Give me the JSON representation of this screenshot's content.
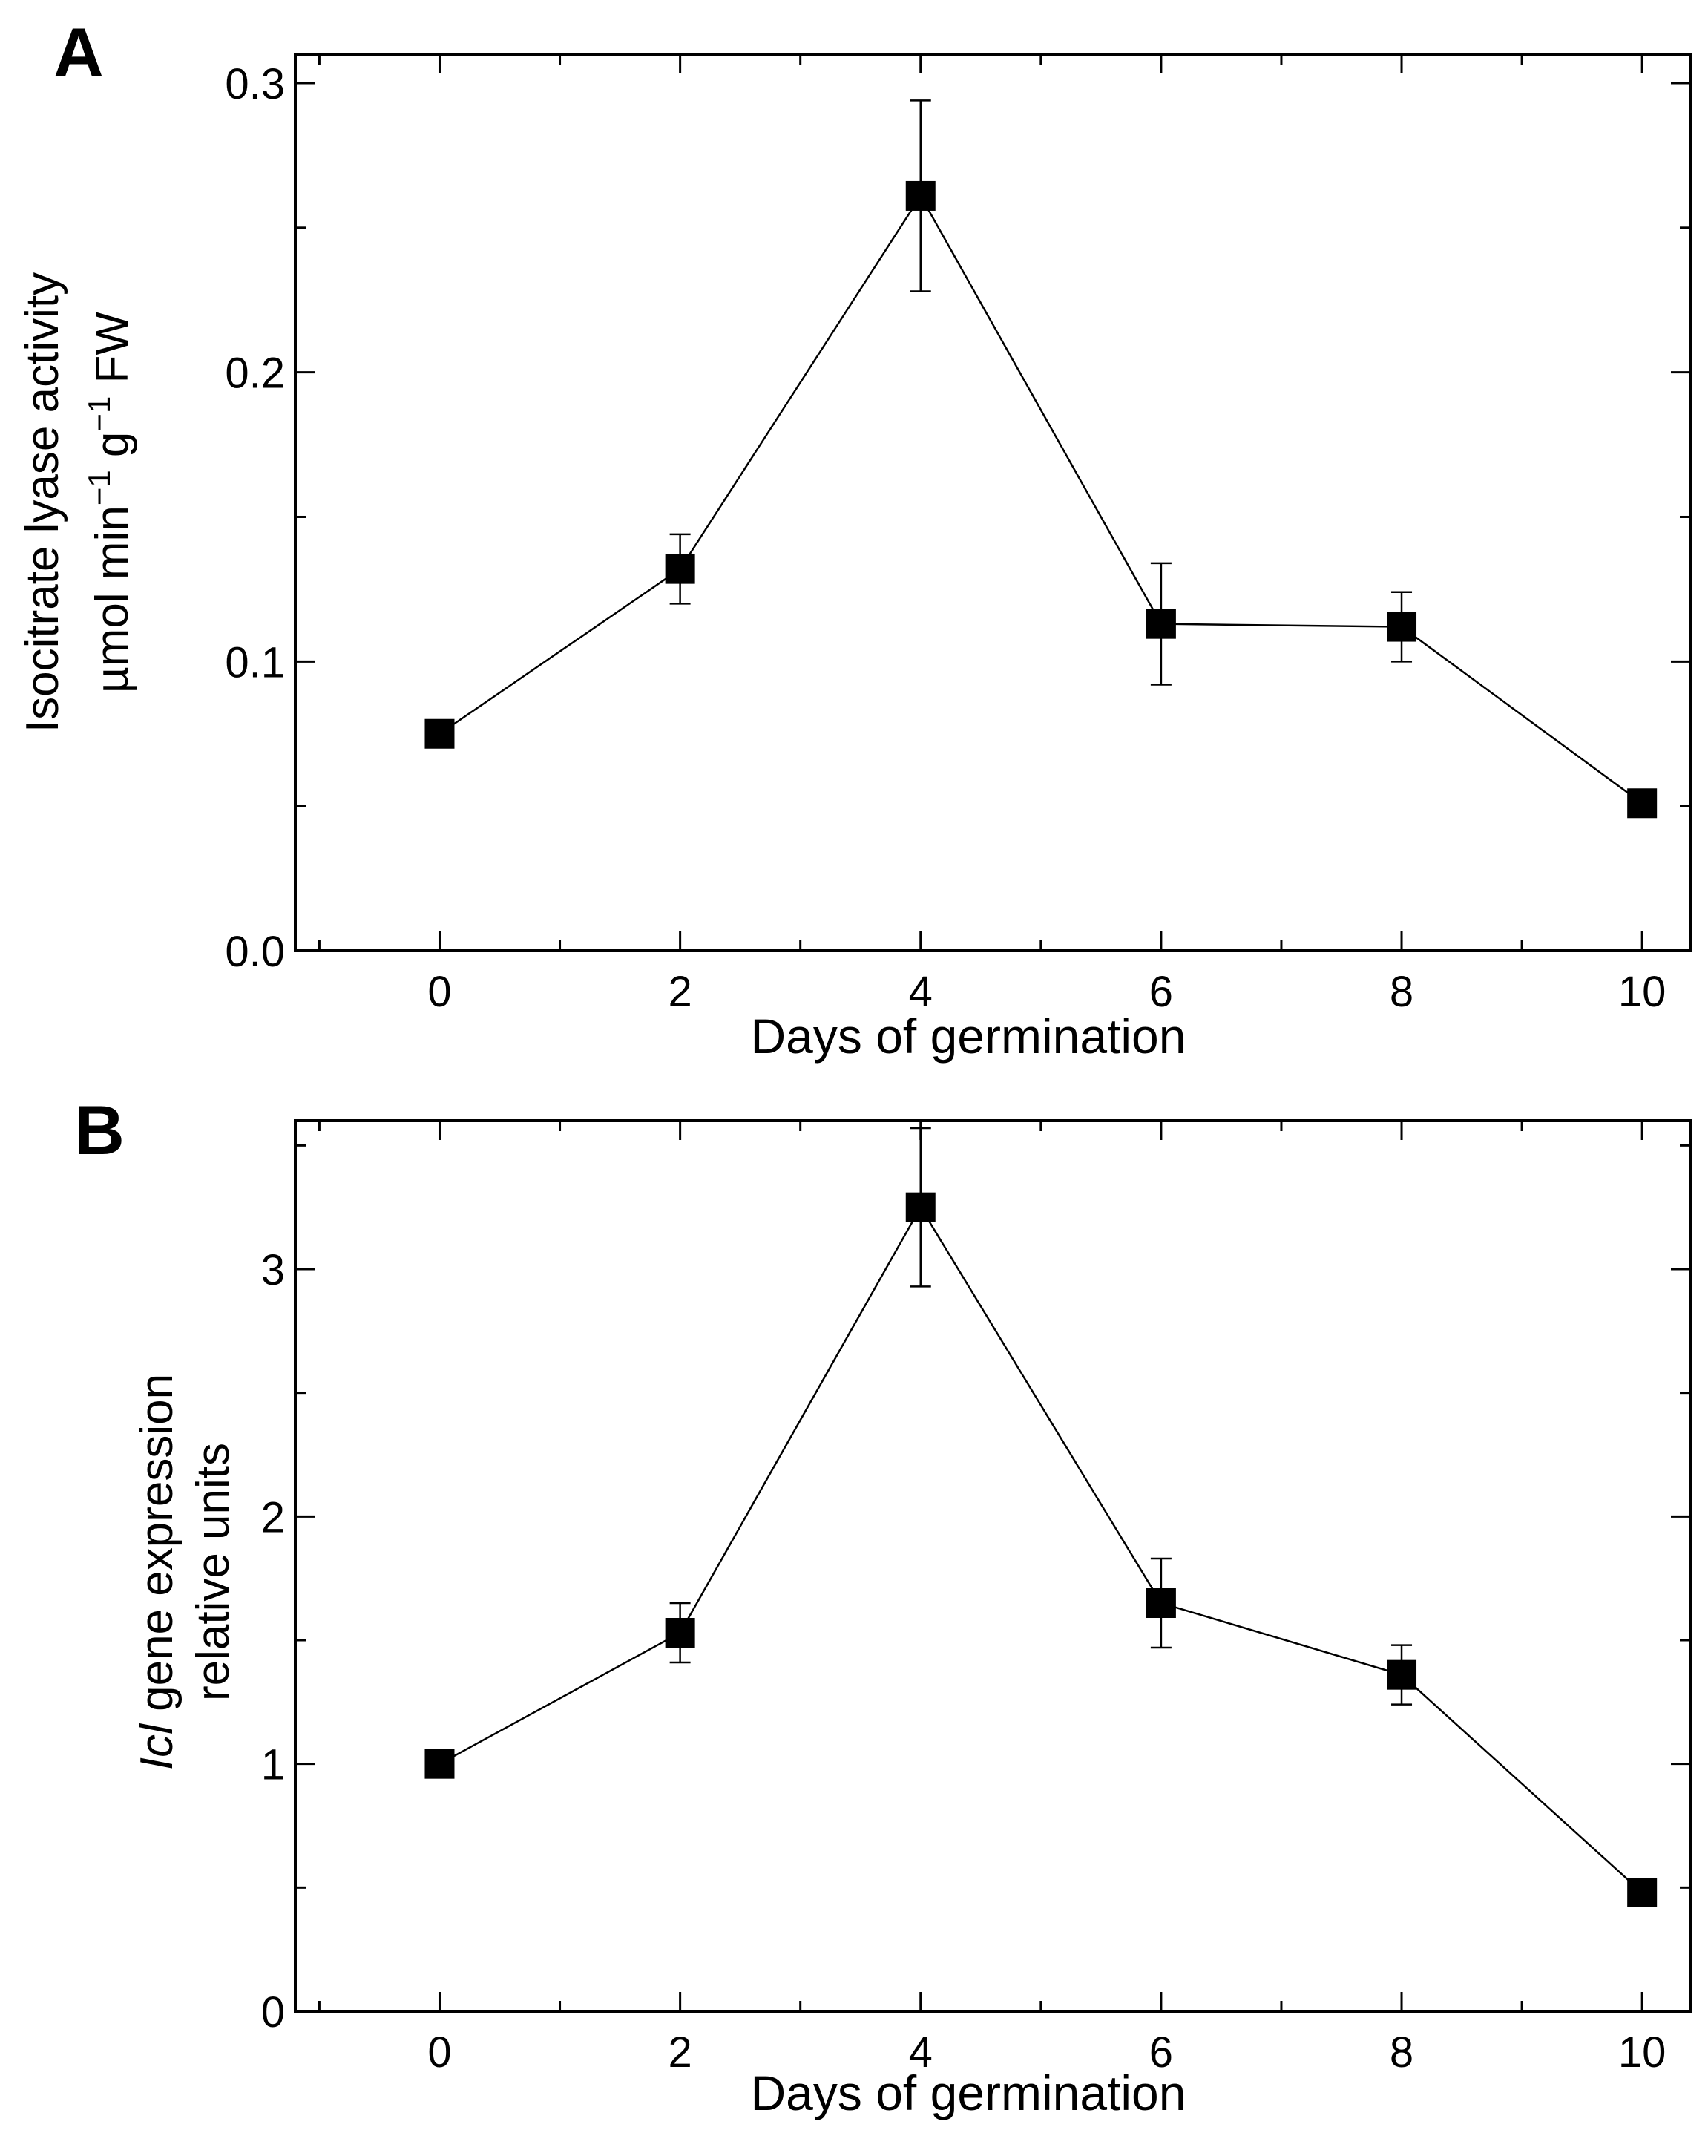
{
  "chart_data": [
    {
      "type": "line",
      "panel_label": "A",
      "title": "",
      "xlabel": "Days of germination",
      "ylabel_line1": "Isocitrate lyase activity",
      "ylabel_line2": {
        "base": "µmol min",
        "sup1": "−1",
        "mid": " g",
        "sup2": "−1",
        "end": " FW"
      },
      "xlim": [
        -1.2,
        10.4
      ],
      "ylim": [
        0.0,
        0.31
      ],
      "xticks": [
        0,
        2,
        4,
        6,
        8,
        10
      ],
      "xtick_labels": [
        "0",
        "2",
        "4",
        "6",
        "8",
        "10"
      ],
      "yticks": [
        0.0,
        0.1,
        0.2,
        0.3
      ],
      "ytick_labels": [
        "0.0",
        "0.1",
        "0.2",
        "0.3"
      ],
      "yminor": [
        0.05,
        0.15,
        0.25
      ],
      "grid": false,
      "series": [
        {
          "name": "Isocitrate lyase activity",
          "x": [
            0,
            2,
            4,
            6,
            8,
            10
          ],
          "y": [
            0.075,
            0.132,
            0.261,
            0.113,
            0.112,
            0.051
          ],
          "err": [
            0.0,
            0.012,
            0.033,
            0.021,
            0.012,
            0.0
          ]
        }
      ]
    },
    {
      "type": "line",
      "panel_label": "B",
      "title": "",
      "xlabel": "Days of germination",
      "ylabel_line1": {
        "italic": "Icl",
        "rest": " gene expression"
      },
      "ylabel_line2": "relative units",
      "xlim": [
        -1.2,
        10.4
      ],
      "ylim": [
        0,
        3.6
      ],
      "xticks": [
        0,
        2,
        4,
        6,
        8,
        10
      ],
      "xtick_labels": [
        "0",
        "2",
        "4",
        "6",
        "8",
        "10"
      ],
      "yticks": [
        0,
        1,
        2,
        3
      ],
      "ytick_labels": [
        "0",
        "1",
        "2",
        "3"
      ],
      "yminor": [
        0.5,
        1.5,
        2.5,
        3.5
      ],
      "grid": false,
      "series": [
        {
          "name": "Icl gene expression",
          "x": [
            0,
            2,
            4,
            6,
            8,
            10
          ],
          "y": [
            1.0,
            1.53,
            3.25,
            1.65,
            1.36,
            0.48
          ],
          "err": [
            0.0,
            0.12,
            0.32,
            0.18,
            0.12,
            0.0
          ]
        }
      ]
    }
  ]
}
